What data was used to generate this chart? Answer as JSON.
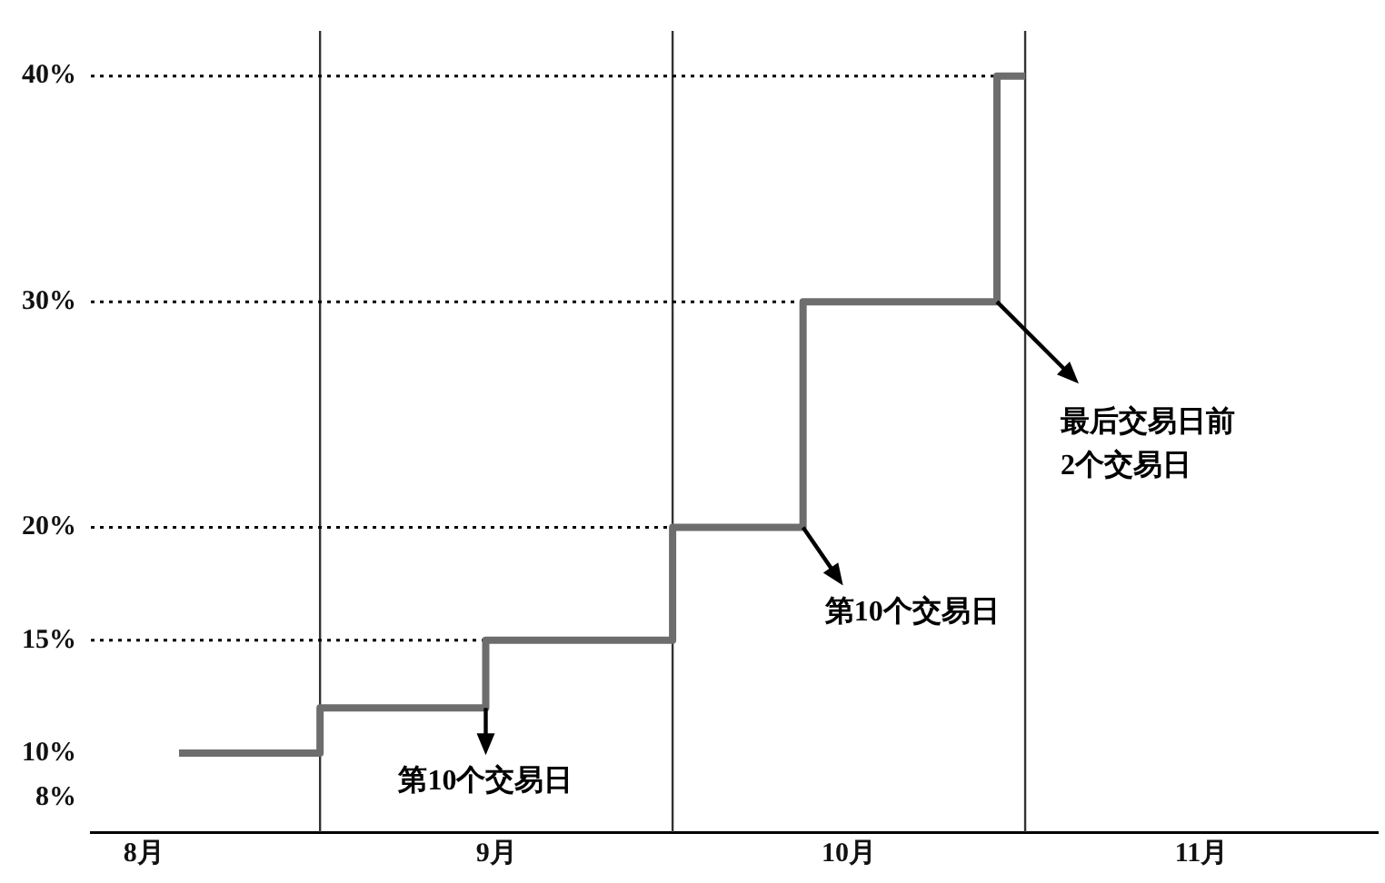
{
  "chart_data": {
    "type": "step",
    "x": [
      8.1,
      8.5,
      8.97,
      9.5,
      9.87,
      10.42,
      10.5
    ],
    "series": [
      {
        "color": "#6d6d6d",
        "values": [
          10,
          12,
          15,
          20,
          30,
          40,
          40
        ]
      }
    ],
    "xlim": [
      7.85,
      11.5
    ],
    "xticks": [
      {
        "value": 8,
        "label": "8月"
      },
      {
        "value": 9,
        "label": "9月"
      },
      {
        "value": 10,
        "label": "10月"
      },
      {
        "value": 11,
        "label": "11月"
      }
    ],
    "ylim": [
      6.5,
      42
    ],
    "yticks": [
      {
        "value": 8,
        "label": "8%"
      },
      {
        "value": 10,
        "label": "10%"
      },
      {
        "value": 15,
        "label": "15%"
      },
      {
        "value": 20,
        "label": "20%"
      },
      {
        "value": 30,
        "label": "30%"
      },
      {
        "value": 40,
        "label": "40%"
      }
    ],
    "grid": false,
    "marker": "none",
    "line_style": "solid",
    "ref_lines": [
      {
        "axis": "x",
        "value": 8.5,
        "color": "#333333",
        "line_style": "solid"
      },
      {
        "axis": "x",
        "value": 9.5,
        "color": "#333333",
        "line_style": "solid"
      },
      {
        "axis": "x",
        "value": 10.5,
        "color": "#333333",
        "line_style": "solid"
      },
      {
        "axis": "y",
        "value": 15,
        "color": "#000000",
        "line_style": "dotted"
      },
      {
        "axis": "y",
        "value": 20,
        "color": "#000000",
        "line_style": "dotted"
      },
      {
        "axis": "y",
        "value": 30,
        "color": "#000000",
        "line_style": "dotted"
      },
      {
        "axis": "y",
        "value": 40,
        "color": "#000000",
        "line_style": "dotted"
      }
    ],
    "annotations": [
      {
        "text": "第10个交易日",
        "x": 8.97,
        "y": 12
      },
      {
        "text": "第10个交易日",
        "x": 9.87,
        "y": 20
      },
      {
        "text": "最后交易日前\n2个交易日",
        "x": 10.42,
        "y": 30
      }
    ]
  }
}
